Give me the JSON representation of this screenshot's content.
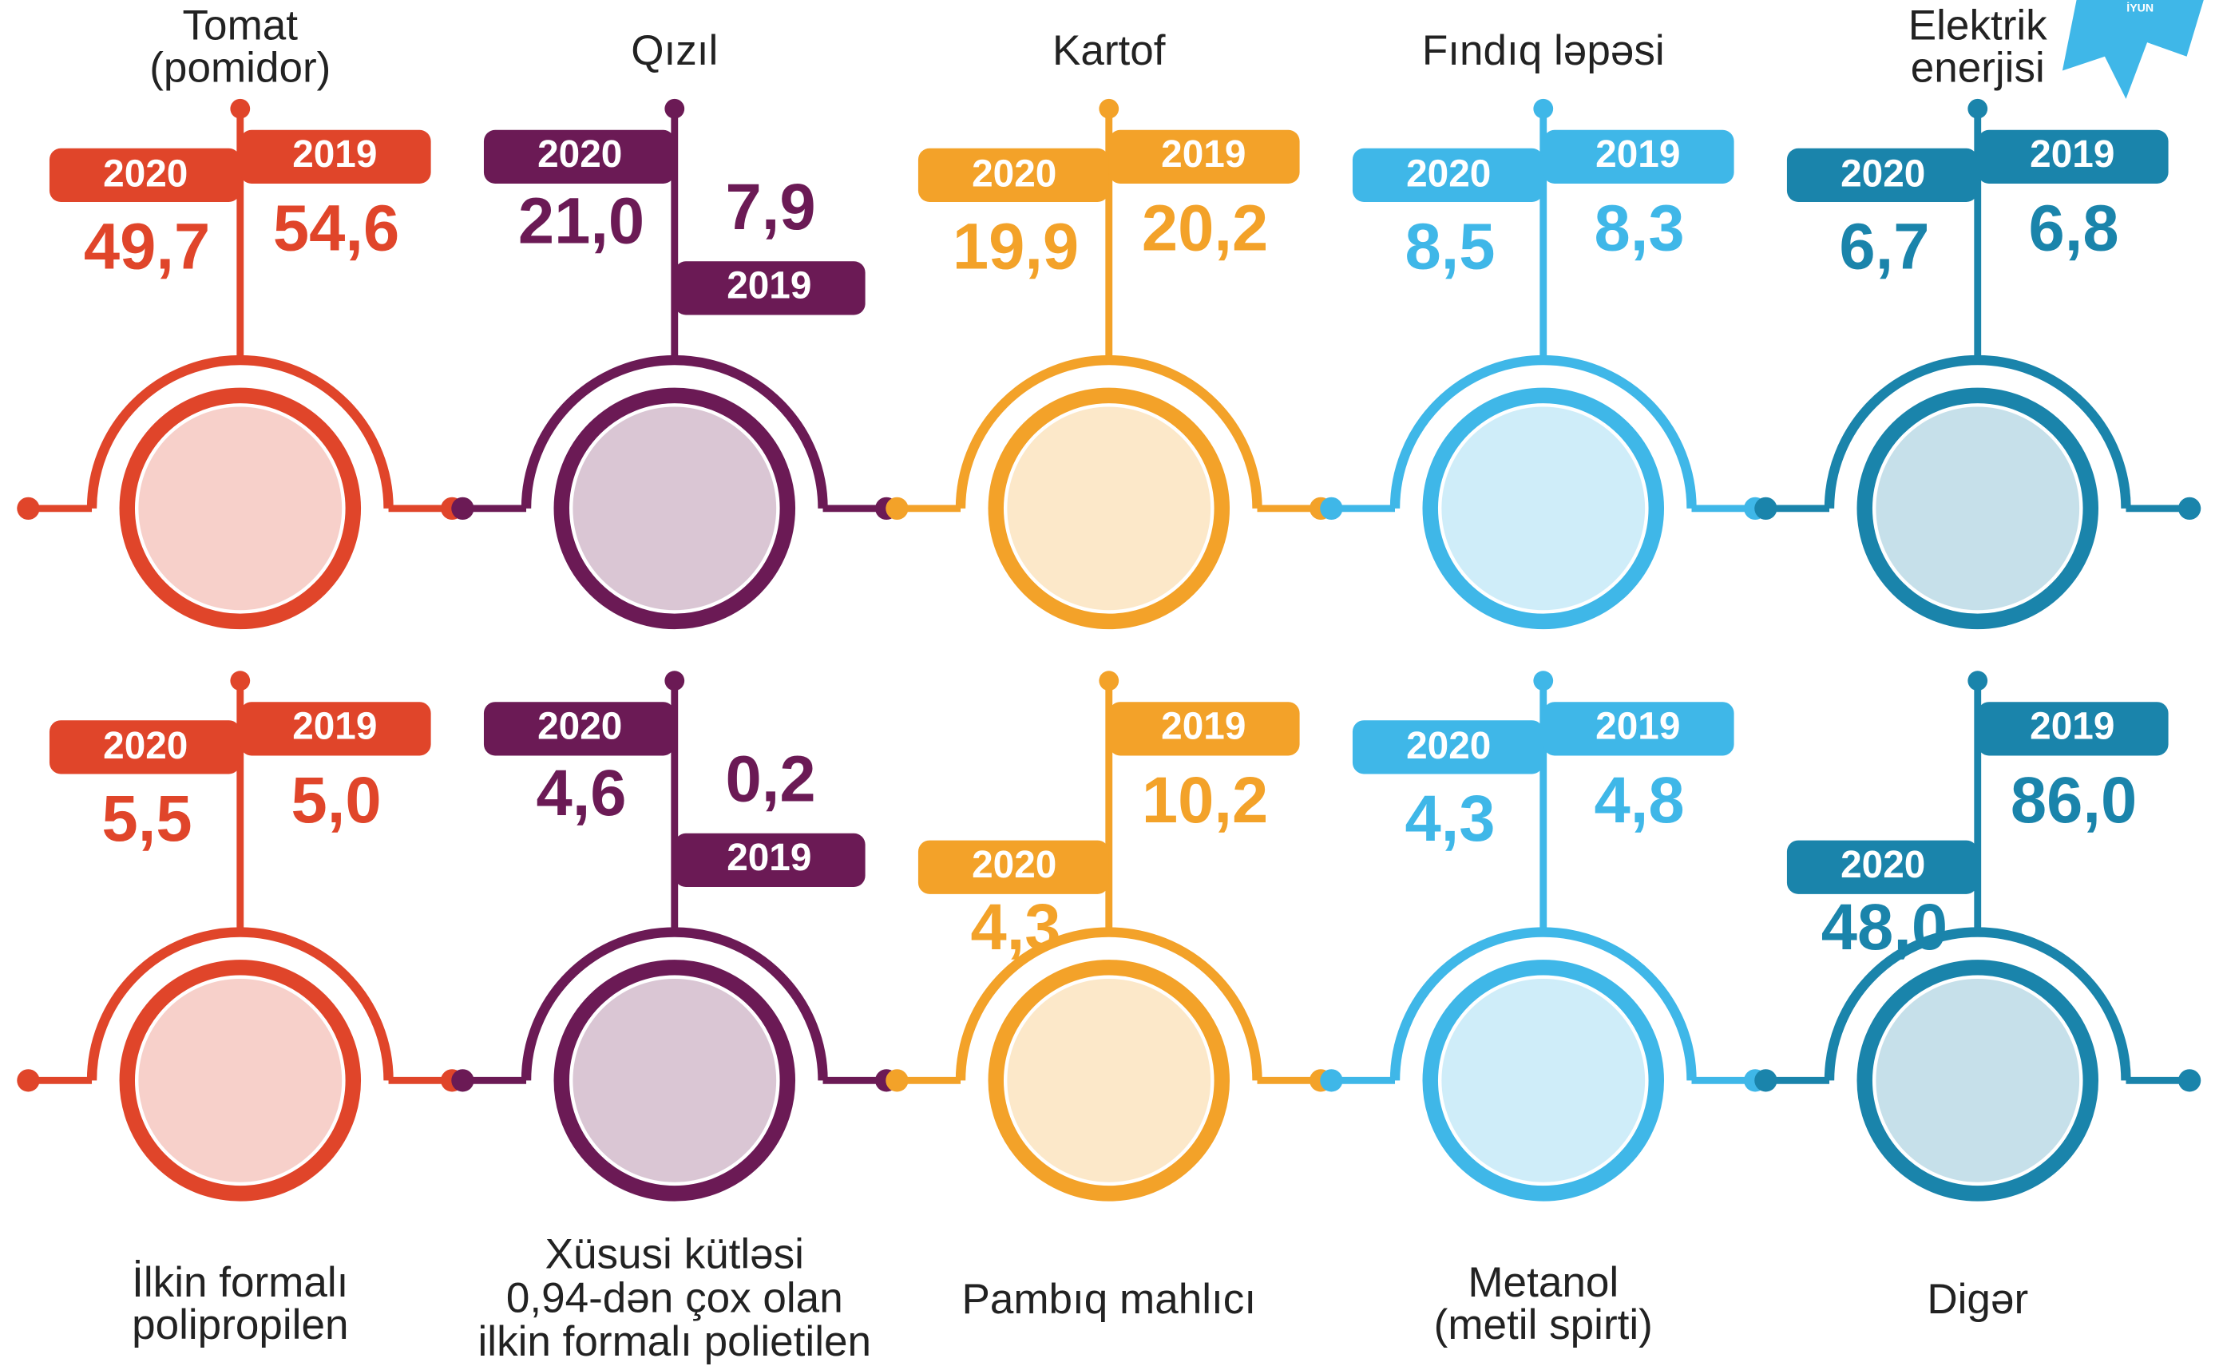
{
  "badge": "İYUN",
  "years": [
    "2020",
    "2019"
  ],
  "rows": [
    [
      {
        "label": [
          "Tomat",
          "(pomidor)"
        ],
        "color": "#e0452a",
        "v2020": "49,7",
        "v2019": "54,6"
      },
      {
        "label": [
          "Qızıl"
        ],
        "color": "#6b1a55",
        "v2020": "21,0",
        "v2019": "7,9"
      },
      {
        "label": [
          "Kartof"
        ],
        "color": "#f3a229",
        "v2020": "19,9",
        "v2019": "20,2"
      },
      {
        "label": [
          "Fındıq ləpəsi"
        ],
        "color": "#3fb7e8",
        "v2020": "8,5",
        "v2019": "8,3"
      },
      {
        "label": [
          "Elektrik",
          "enerjisi"
        ],
        "color": "#1a84ab",
        "v2020": "6,7",
        "v2019": "6,8"
      }
    ],
    [
      {
        "label": [
          "İlkin formalı",
          "polipropilen"
        ],
        "color": "#e0452a",
        "v2020": "5,5",
        "v2019": "5,0"
      },
      {
        "label": [
          "Xüsusi kütləsi",
          "0,94-dən çox olan",
          "ilkin formalı polietilen"
        ],
        "color": "#6b1a55",
        "v2020": "4,6",
        "v2019": "0,2"
      },
      {
        "label": [
          "Pambıq mahlıcı"
        ],
        "color": "#f3a229",
        "v2020": "4,3",
        "v2019": "10,2"
      },
      {
        "label": [
          "Metanol",
          "(metil spirti)"
        ],
        "color": "#3fb7e8",
        "v2020": "4,3",
        "v2019": "4,8"
      },
      {
        "label": [
          "Digər"
        ],
        "color": "#1a84ab",
        "v2020": "48,0",
        "v2019": "86,0"
      }
    ]
  ]
}
